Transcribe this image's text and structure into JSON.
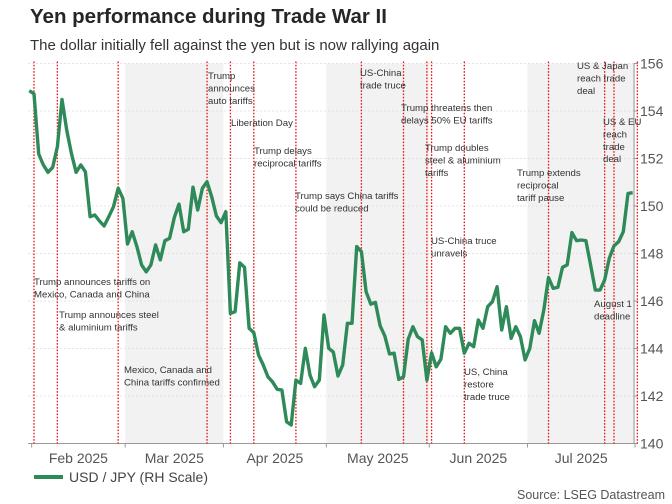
{
  "title": "Yen performance during Trade War II",
  "subtitle": "The dollar initially fell against the yen but is now rallying again",
  "source": "Source: LSEG Datastream",
  "chart_data": {
    "type": "line",
    "title": "Yen performance during Trade War II",
    "xlabel": "",
    "ylabel": "",
    "y_axis_side": "right",
    "ylim": [
      140,
      156
    ],
    "yticks": [
      140,
      142,
      144,
      146,
      148,
      150,
      152,
      154,
      156
    ],
    "xtick_labels": [
      "Feb 2025",
      "Mar 2025",
      "Apr 2025",
      "May 2025",
      "Jun 2025",
      "Jul 2025"
    ],
    "grid": true,
    "legend_position": "bottom-left",
    "colors": {
      "series": "#2e8a58",
      "event_line": "#e8120c",
      "shade": "#f2f2f2"
    },
    "shaded_months": [
      "Mar 2025",
      "May 2025",
      "Jul 2025"
    ],
    "series": [
      {
        "name": "USD / JPY (RH Scale)",
        "dates": [
          "2025-01-31",
          "2025-02-03",
          "2025-02-04",
          "2025-02-05",
          "2025-02-06",
          "2025-02-07",
          "2025-02-10",
          "2025-02-11",
          "2025-02-12",
          "2025-02-13",
          "2025-02-14",
          "2025-02-17",
          "2025-02-18",
          "2025-02-19",
          "2025-02-20",
          "2025-02-21",
          "2025-02-24",
          "2025-02-25",
          "2025-02-26",
          "2025-02-27",
          "2025-02-28",
          "2025-03-03",
          "2025-03-04",
          "2025-03-05",
          "2025-03-06",
          "2025-03-07",
          "2025-03-10",
          "2025-03-11",
          "2025-03-12",
          "2025-03-13",
          "2025-03-14",
          "2025-03-17",
          "2025-03-18",
          "2025-03-19",
          "2025-03-20",
          "2025-03-21",
          "2025-03-24",
          "2025-03-25",
          "2025-03-26",
          "2025-03-27",
          "2025-03-28",
          "2025-03-31",
          "2025-04-01",
          "2025-04-02",
          "2025-04-03",
          "2025-04-04",
          "2025-04-07",
          "2025-04-08",
          "2025-04-09",
          "2025-04-10",
          "2025-04-11",
          "2025-04-14",
          "2025-04-15",
          "2025-04-16",
          "2025-04-17",
          "2025-04-18",
          "2025-04-21",
          "2025-04-22",
          "2025-04-23",
          "2025-04-24",
          "2025-04-25",
          "2025-04-28",
          "2025-04-29",
          "2025-04-30",
          "2025-05-01",
          "2025-05-02",
          "2025-05-05",
          "2025-05-06",
          "2025-05-07",
          "2025-05-08",
          "2025-05-09",
          "2025-05-12",
          "2025-05-13",
          "2025-05-14",
          "2025-05-15",
          "2025-05-16",
          "2025-05-19",
          "2025-05-20",
          "2025-05-21",
          "2025-05-22",
          "2025-05-23",
          "2025-05-26",
          "2025-05-27",
          "2025-05-28",
          "2025-05-29",
          "2025-05-30",
          "2025-06-02",
          "2025-06-03",
          "2025-06-04",
          "2025-06-05",
          "2025-06-06",
          "2025-06-09",
          "2025-06-10",
          "2025-06-11",
          "2025-06-12",
          "2025-06-13",
          "2025-06-16",
          "2025-06-17",
          "2025-06-18",
          "2025-06-19",
          "2025-06-20",
          "2025-06-23",
          "2025-06-24",
          "2025-06-25",
          "2025-06-26",
          "2025-06-27",
          "2025-06-30",
          "2025-07-01",
          "2025-07-02",
          "2025-07-03",
          "2025-07-04",
          "2025-07-07",
          "2025-07-08",
          "2025-07-09",
          "2025-07-10",
          "2025-07-11",
          "2025-07-14",
          "2025-07-15",
          "2025-07-16",
          "2025-07-17",
          "2025-07-18",
          "2025-07-21",
          "2025-07-22",
          "2025-07-23",
          "2025-07-24",
          "2025-07-25",
          "2025-07-28",
          "2025-07-29",
          "2025-07-30",
          "2025-07-31"
        ],
        "values": [
          154.86,
          154.72,
          152.19,
          151.73,
          151.42,
          151.63,
          152.5,
          154.49,
          153.2,
          152.22,
          151.42,
          151.73,
          151.44,
          149.55,
          149.62,
          149.37,
          149.16,
          149.55,
          149.97,
          150.75,
          150.32,
          148.4,
          148.92,
          148.29,
          147.52,
          147.23,
          147.52,
          148.36,
          147.73,
          148.54,
          148.64,
          149.51,
          150.08,
          148.92,
          149.02,
          150.79,
          149.83,
          150.75,
          151.02,
          150.39,
          149.58,
          149.3,
          149.76,
          145.48,
          145.55,
          147.61,
          147.42,
          144.85,
          144.67,
          143.73,
          143.31,
          142.81,
          142.6,
          142.28,
          142.25,
          140.92,
          140.78,
          142.67,
          142.53,
          144.01,
          142.88,
          142.39,
          142.67,
          145.41,
          144.01,
          143.85,
          142.84,
          143.31,
          145.06,
          145.06,
          148.29,
          148.08,
          146.39,
          145.87,
          145.94,
          144.96,
          144.53,
          143.77,
          143.8,
          142.7,
          142.81,
          144.39,
          144.92,
          144.5,
          144.36,
          142.67,
          143.82,
          143.23,
          143.55,
          144.92,
          144.64,
          144.85,
          144.85,
          143.8,
          144.22,
          144.08,
          145.2,
          144.85,
          145.76,
          145.97,
          146.6,
          144.78,
          145.76,
          144.43,
          144.92,
          144.5,
          143.52,
          144.01,
          145.17,
          144.64,
          145.62,
          146.99,
          146.53,
          146.58,
          147.42,
          147.52,
          148.88,
          148.54,
          148.57,
          148.54,
          147.52,
          146.46,
          146.46,
          146.88,
          147.8,
          148.32,
          148.5,
          148.92,
          150.53,
          150.56
        ]
      }
    ],
    "events": [
      {
        "date": "2025-02-03",
        "label": [
          "Trump announces tariffs on",
          "Mexico, Canada and China"
        ]
      },
      {
        "date": "2025-02-10",
        "label": [
          "Trump announces steel",
          "& aluminium tariffs"
        ]
      },
      {
        "date": "2025-02-27",
        "label": [
          "Mexico, Canada and",
          "China tariffs confirmed"
        ]
      },
      {
        "date": "2025-03-26",
        "label": [
          "Trump",
          "announces",
          "auto tariffs"
        ]
      },
      {
        "date": "2025-04-02",
        "label": [
          "Liberation Day"
        ]
      },
      {
        "date": "2025-04-09",
        "label": [
          "Trump delays",
          "reciprocal tariffs"
        ]
      },
      {
        "date": "2025-04-22",
        "label": [
          "Trump says China tariffs",
          "could be reduced"
        ]
      },
      {
        "date": "2025-05-12",
        "label": [
          "US-China",
          "trade truce"
        ]
      },
      {
        "date": "2025-05-23",
        "label": [
          "Trump threatens then",
          "delays 50% EU tariffs"
        ]
      },
      {
        "date": "2025-05-30",
        "label": [
          "Trump doubles",
          "steel & aluminium",
          "tariffs"
        ]
      },
      {
        "date": "2025-06-02",
        "label": [
          "US-China truce",
          "unravels"
        ]
      },
      {
        "date": "2025-06-11",
        "label": [
          "US, China",
          "restore",
          "trade truce"
        ]
      },
      {
        "date": "2025-07-07",
        "label": [
          "Trump extends",
          "reciprocal",
          "tariff pause"
        ]
      },
      {
        "date": "2025-07-23",
        "label": [
          "US & Japan",
          "reach trade",
          "deal"
        ]
      },
      {
        "date": "2025-07-25",
        "label": [
          "US & EU",
          "reach",
          "trade",
          "deal"
        ]
      },
      {
        "date": "2025-08-01",
        "label": [
          "August 1",
          "deadline"
        ]
      }
    ]
  }
}
